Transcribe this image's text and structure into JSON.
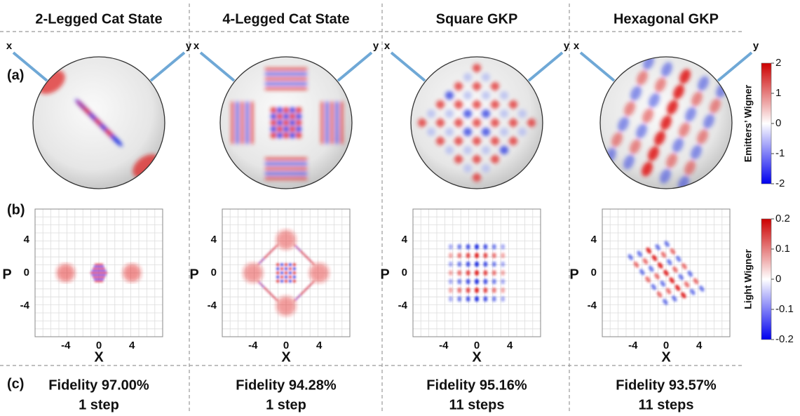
{
  "columns": [
    {
      "title": "2-Legged Cat State",
      "fidelity": "Fidelity 97.00%",
      "steps": "1 step"
    },
    {
      "title": "4-Legged Cat State",
      "fidelity": "Fidelity 94.28%",
      "steps": "1 step"
    },
    {
      "title": "Square GKP",
      "fidelity": "Fidelity 95.16%",
      "steps": "11 steps"
    },
    {
      "title": "Hexagonal GKP",
      "fidelity": "Fidelity 93.57%",
      "steps": "11 steps"
    }
  ],
  "row_labels": [
    "(a)",
    "(b)",
    "(c)"
  ],
  "sphere_axes": [
    "x",
    "y"
  ],
  "plot_axes": {
    "x_label": "X",
    "y_label": "P",
    "x_ticks": [
      -4,
      0,
      4
    ],
    "y_ticks": [
      4,
      0,
      -4
    ]
  },
  "colorbars": [
    {
      "label": "Emitters’ Wigner",
      "ticks": [
        2,
        1,
        0,
        -1,
        -2
      ]
    },
    {
      "label": "Light Wigner",
      "ticks": [
        0.2,
        0.1,
        0,
        -0.1,
        -0.2
      ]
    }
  ]
}
